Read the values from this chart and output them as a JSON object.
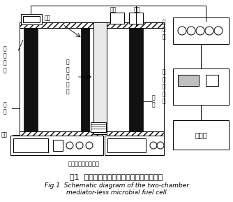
{
  "title_cn": "图1  无介体双室微生物燃料电池系统示意图",
  "title_en1": "Fig.1  Schematic diagram of the two-chamber",
  "title_en2": "mediator-less microbial fuel cell",
  "bg_color": "#ffffff",
  "line_color": "#000000",
  "dark_color": "#111111",
  "labels": {
    "shimo_dianji": "石\n墨\n电\n极",
    "yinji": "阴\n极",
    "jinshui_left": "进水",
    "chushui_left": "出水",
    "lizi_jiaohuan_mo": "质\n子\n交\n换\n膜",
    "jinshui_right": "进水",
    "chushui_right": "出水",
    "yangji": "阳\n极",
    "dianzuxiang": "电\n阻\n箱",
    "shuju_caiji_qi": "数\n据\n采\n集\n器",
    "jisuanji": "计算机",
    "hengwen": "恒温磁力加热搅拌器"
  }
}
